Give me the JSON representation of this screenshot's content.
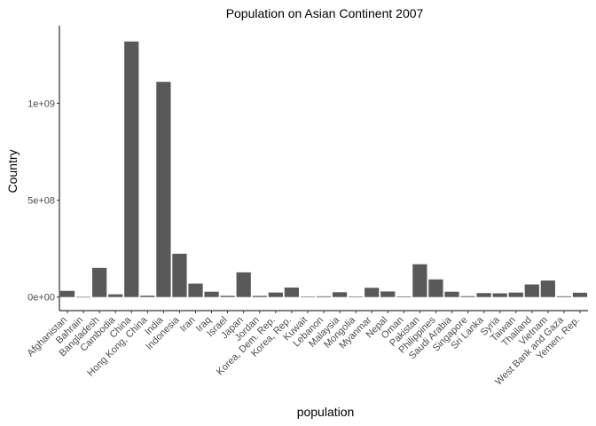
{
  "chart_data": {
    "type": "bar",
    "title": "Population on Asian Continent 2007",
    "xlabel": "population",
    "ylabel": "Country",
    "ylim": [
      -70000000,
      1400000000
    ],
    "yticks": [
      0,
      500000000,
      1000000000
    ],
    "ytick_labels": [
      "0e+00",
      "5e+08",
      "1e+09"
    ],
    "grid": false,
    "bar_color": "#595959",
    "categories": [
      "Afghanistan",
      "Bahrain",
      "Bangladesh",
      "Cambodia",
      "China",
      "Hong Kong, China",
      "India",
      "Indonesia",
      "Iran",
      "Iraq",
      "Israel",
      "Japan",
      "Jordan",
      "Korea, Dem. Rep.",
      "Korea, Rep.",
      "Kuwait",
      "Lebanon",
      "Malaysia",
      "Mongolia",
      "Myanmar",
      "Nepal",
      "Oman",
      "Pakistan",
      "Philippines",
      "Saudi Arabia",
      "Singapore",
      "Sri Lanka",
      "Syria",
      "Taiwan",
      "Thailand",
      "Vietnam",
      "West Bank and Gaza",
      "Yemen, Rep."
    ],
    "values": [
      31889923,
      708573,
      150448339,
      14131858,
      1318683096,
      6980412,
      1110396331,
      223547000,
      69453570,
      27499638,
      6426679,
      127467972,
      6053193,
      23301725,
      49044790,
      2505559,
      3921278,
      24821286,
      2874127,
      47761980,
      28901790,
      3204897,
      169270617,
      91077287,
      27601038,
      4553009,
      20378239,
      19314747,
      23174294,
      65068149,
      85262356,
      4018332,
      22211743
    ]
  }
}
